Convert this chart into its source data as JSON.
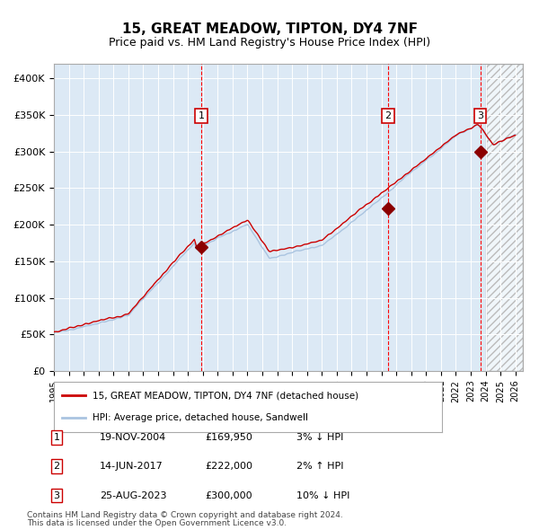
{
  "title": "15, GREAT MEADOW, TIPTON, DY4 7NF",
  "subtitle": "Price paid vs. HM Land Registry's House Price Index (HPI)",
  "legend_line1": "15, GREAT MEADOW, TIPTON, DY4 7NF (detached house)",
  "legend_line2": "HPI: Average price, detached house, Sandwell",
  "hpi_color": "#aac4e0",
  "price_color": "#cc0000",
  "sale_marker_color": "#8b0000",
  "vline_color": "#ff0000",
  "background_color": "#dce9f5",
  "future_hatch_color": "#cccccc",
  "sales": [
    {
      "label": "1",
      "date_num": 2004.89,
      "price": 169950,
      "note": "19-NOV-2004",
      "price_str": "£169,950",
      "pct": "3%",
      "dir": "↓"
    },
    {
      "label": "2",
      "date_num": 2017.44,
      "price": 222000,
      "note": "14-JUN-2017",
      "price_str": "£222,000",
      "pct": "2%",
      "dir": "↑"
    },
    {
      "label": "3",
      "date_num": 2023.64,
      "price": 300000,
      "note": "25-AUG-2023",
      "price_str": "£300,000",
      "pct": "10%",
      "dir": "↓"
    }
  ],
  "xlim": [
    1995.0,
    2026.5
  ],
  "ylim": [
    0,
    420000
  ],
  "yticks": [
    0,
    50000,
    100000,
    150000,
    200000,
    250000,
    300000,
    350000,
    400000
  ],
  "ytick_labels": [
    "£0",
    "£50K",
    "£100K",
    "£150K",
    "£200K",
    "£250K",
    "£300K",
    "£350K",
    "£400K"
  ],
  "xtick_years": [
    1995,
    1996,
    1997,
    1998,
    1999,
    2000,
    2001,
    2002,
    2003,
    2004,
    2005,
    2006,
    2007,
    2008,
    2009,
    2010,
    2011,
    2012,
    2013,
    2014,
    2015,
    2016,
    2017,
    2018,
    2019,
    2020,
    2021,
    2022,
    2023,
    2024,
    2025,
    2026
  ],
  "future_start": 2024.0,
  "footer1": "Contains HM Land Registry data © Crown copyright and database right 2024.",
  "footer2": "This data is licensed under the Open Government Licence v3.0."
}
